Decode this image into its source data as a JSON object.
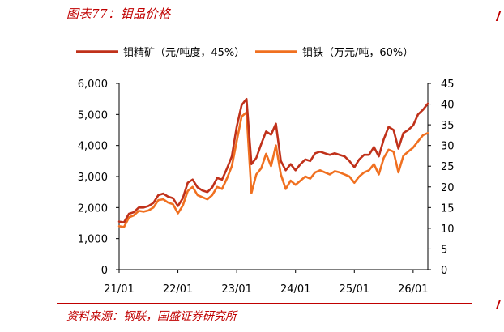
{
  "header": {
    "title": "图表77：钼品价格"
  },
  "footer": {
    "source": "资料来源：钢联，国盛证券研究所"
  },
  "colors": {
    "accent": "#c00000",
    "series1": "#c0311a",
    "series2": "#f07020"
  },
  "chart_data": {
    "type": "line",
    "grid": false,
    "legend_position": "top",
    "x_ticks": [
      "21/01",
      "22/01",
      "23/01",
      "24/01",
      "25/01",
      "26/01"
    ],
    "x_range": [
      "2021-01",
      "2026-04"
    ],
    "y_left": {
      "ticks": [
        "0",
        "1,000",
        "2,000",
        "3,000",
        "4,000",
        "5,000",
        "6,000"
      ],
      "range": [
        0,
        6000
      ]
    },
    "y_right": {
      "ticks": [
        "0",
        "5",
        "10",
        "15",
        "20",
        "25",
        "30",
        "35",
        "40",
        "45"
      ],
      "range": [
        0,
        45
      ]
    },
    "series": [
      {
        "name": "钼精矿（元/吨度，45%）",
        "axis": "left",
        "points": [
          [
            "2021-01",
            1550
          ],
          [
            "2021-02",
            1520
          ],
          [
            "2021-03",
            1800
          ],
          [
            "2021-04",
            1850
          ],
          [
            "2021-05",
            2000
          ],
          [
            "2021-06",
            2000
          ],
          [
            "2021-07",
            2050
          ],
          [
            "2021-08",
            2150
          ],
          [
            "2021-09",
            2400
          ],
          [
            "2021-10",
            2450
          ],
          [
            "2021-11",
            2350
          ],
          [
            "2021-12",
            2300
          ],
          [
            "2022-01",
            2050
          ],
          [
            "2022-02",
            2300
          ],
          [
            "2022-03",
            2800
          ],
          [
            "2022-04",
            2900
          ],
          [
            "2022-05",
            2650
          ],
          [
            "2022-06",
            2550
          ],
          [
            "2022-07",
            2500
          ],
          [
            "2022-08",
            2650
          ],
          [
            "2022-09",
            2950
          ],
          [
            "2022-10",
            2900
          ],
          [
            "2022-11",
            3250
          ],
          [
            "2022-12",
            3650
          ],
          [
            "2023-01",
            4600
          ],
          [
            "2023-02",
            5300
          ],
          [
            "2023-03",
            5500
          ],
          [
            "2023-04",
            3400
          ],
          [
            "2023-05",
            3600
          ],
          [
            "2023-06",
            4050
          ],
          [
            "2023-07",
            4450
          ],
          [
            "2023-08",
            4350
          ],
          [
            "2023-09",
            4700
          ],
          [
            "2023-10",
            3500
          ],
          [
            "2023-11",
            3200
          ],
          [
            "2023-12",
            3400
          ],
          [
            "2024-01",
            3200
          ],
          [
            "2024-02",
            3400
          ],
          [
            "2024-03",
            3550
          ],
          [
            "2024-04",
            3500
          ],
          [
            "2024-05",
            3750
          ],
          [
            "2024-06",
            3800
          ],
          [
            "2024-07",
            3750
          ],
          [
            "2024-08",
            3700
          ],
          [
            "2024-09",
            3750
          ],
          [
            "2024-10",
            3700
          ],
          [
            "2024-11",
            3650
          ],
          [
            "2024-12",
            3500
          ],
          [
            "2025-01",
            3300
          ],
          [
            "2025-02",
            3550
          ],
          [
            "2025-03",
            3700
          ],
          [
            "2025-04",
            3700
          ],
          [
            "2025-05",
            3950
          ],
          [
            "2025-06",
            3650
          ],
          [
            "2025-07",
            4200
          ],
          [
            "2025-08",
            4600
          ],
          [
            "2025-09",
            4500
          ],
          [
            "2025-10",
            3900
          ],
          [
            "2025-11",
            4400
          ],
          [
            "2025-12",
            4500
          ],
          [
            "2026-01",
            4650
          ],
          [
            "2026-02",
            5000
          ],
          [
            "2026-03",
            5150
          ],
          [
            "2026-04",
            5350
          ]
        ]
      },
      {
        "name": "钼铁（万元/吨，60%）",
        "axis": "right",
        "points": [
          [
            "2021-01",
            10.5
          ],
          [
            "2021-02",
            10.3
          ],
          [
            "2021-03",
            12.6
          ],
          [
            "2021-04",
            13.1
          ],
          [
            "2021-05",
            14.2
          ],
          [
            "2021-06",
            14.0
          ],
          [
            "2021-07",
            14.3
          ],
          [
            "2021-08",
            15.0
          ],
          [
            "2021-09",
            16.8
          ],
          [
            "2021-10",
            17.0
          ],
          [
            "2021-11",
            16.2
          ],
          [
            "2021-12",
            15.8
          ],
          [
            "2022-01",
            13.6
          ],
          [
            "2022-02",
            15.5
          ],
          [
            "2022-03",
            19.0
          ],
          [
            "2022-04",
            20.0
          ],
          [
            "2022-05",
            18.0
          ],
          [
            "2022-06",
            17.5
          ],
          [
            "2022-07",
            17.0
          ],
          [
            "2022-08",
            18.0
          ],
          [
            "2022-09",
            20.0
          ],
          [
            "2022-10",
            19.5
          ],
          [
            "2022-11",
            22.0
          ],
          [
            "2022-12",
            25.0
          ],
          [
            "2023-01",
            31.0
          ],
          [
            "2023-02",
            37.0
          ],
          [
            "2023-03",
            38.0
          ],
          [
            "2023-04",
            18.5
          ],
          [
            "2023-05",
            23.0
          ],
          [
            "2023-06",
            24.5
          ],
          [
            "2023-07",
            28.0
          ],
          [
            "2023-08",
            25.0
          ],
          [
            "2023-09",
            30.0
          ],
          [
            "2023-10",
            23.0
          ],
          [
            "2023-11",
            19.5
          ],
          [
            "2023-12",
            21.5
          ],
          [
            "2024-01",
            20.5
          ],
          [
            "2024-02",
            21.5
          ],
          [
            "2024-03",
            22.5
          ],
          [
            "2024-04",
            22.0
          ],
          [
            "2024-05",
            23.5
          ],
          [
            "2024-06",
            24.0
          ],
          [
            "2024-07",
            23.5
          ],
          [
            "2024-08",
            23.0
          ],
          [
            "2024-09",
            23.8
          ],
          [
            "2024-10",
            23.5
          ],
          [
            "2024-11",
            23.0
          ],
          [
            "2024-12",
            22.5
          ],
          [
            "2025-01",
            21.0
          ],
          [
            "2025-02",
            22.5
          ],
          [
            "2025-03",
            23.5
          ],
          [
            "2025-04",
            24.0
          ],
          [
            "2025-05",
            25.5
          ],
          [
            "2025-06",
            23.0
          ],
          [
            "2025-07",
            27.0
          ],
          [
            "2025-08",
            29.0
          ],
          [
            "2025-09",
            28.5
          ],
          [
            "2025-10",
            23.5
          ],
          [
            "2025-11",
            27.5
          ],
          [
            "2025-12",
            28.5
          ],
          [
            "2026-01",
            29.5
          ],
          [
            "2026-02",
            31.0
          ],
          [
            "2026-03",
            32.5
          ],
          [
            "2026-04",
            33.0
          ]
        ]
      }
    ]
  }
}
